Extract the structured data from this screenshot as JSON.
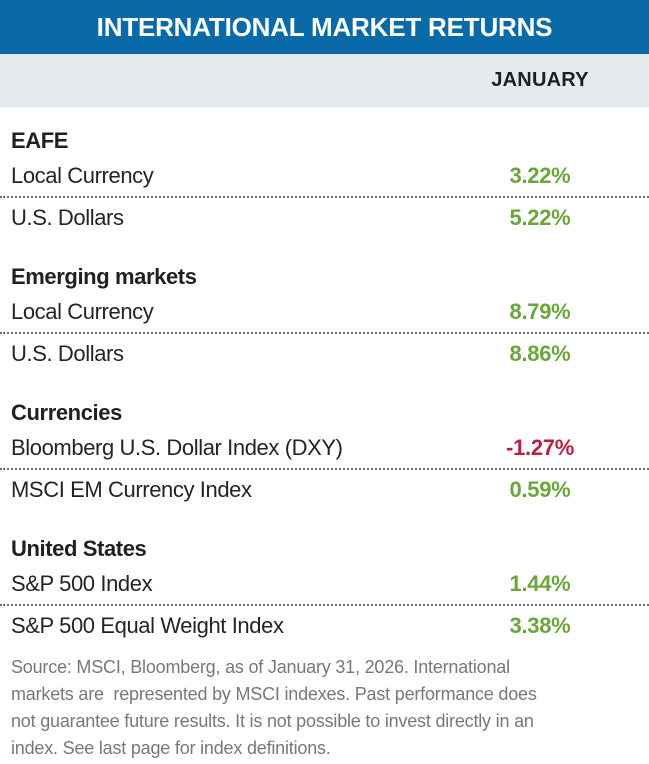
{
  "title": "INTERNATIONAL MARKET RETURNS",
  "column_header": "JANUARY",
  "colors": {
    "header_bg": "#0A6AA7",
    "column_header_bg": "#E5EAEC",
    "positive_value": "#6AA63C",
    "negative_value": "#B81F41",
    "heading_text": "#231F20",
    "footnote_text": "#77787B"
  },
  "sections": [
    {
      "name": "EAFE",
      "rows": [
        {
          "label": "Local Currency",
          "value": "3.22%",
          "sentiment": "positive"
        },
        {
          "label": "U.S. Dollars",
          "value": "5.22%",
          "sentiment": "positive"
        }
      ]
    },
    {
      "name": "Emerging markets",
      "rows": [
        {
          "label": "Local Currency",
          "value": "8.79%",
          "sentiment": "positive"
        },
        {
          "label": "U.S. Dollars",
          "value": "8.86%",
          "sentiment": "positive"
        }
      ]
    },
    {
      "name": "Currencies",
      "rows": [
        {
          "label": "Bloomberg U.S. Dollar Index (DXY)",
          "value": "-1.27%",
          "sentiment": "negative"
        },
        {
          "label": "MSCI EM Currency Index",
          "value": "0.59%",
          "sentiment": "positive"
        }
      ]
    },
    {
      "name": "United States",
      "rows": [
        {
          "label": "S&P 500 Index",
          "value": "1.44%",
          "sentiment": "positive"
        },
        {
          "label": "S&P 500 Equal Weight Index",
          "value": "3.38%",
          "sentiment": "positive"
        }
      ]
    }
  ],
  "footnote_lines": [
    "Source: MSCI, Bloomberg, as of January 31, 2026. International",
    "markets are  represented by MSCI indexes. Past performance does",
    "not guarantee future results. It is not possible to invest directly in an",
    "index. See last page for index definitions."
  ],
  "chart_data": {
    "type": "table",
    "title": "INTERNATIONAL MARKET RETURNS",
    "columns": [
      "JANUARY"
    ],
    "groups": [
      {
        "group": "EAFE",
        "rows": [
          [
            "Local Currency",
            3.22
          ],
          [
            "U.S. Dollars",
            5.22
          ]
        ]
      },
      {
        "group": "Emerging markets",
        "rows": [
          [
            "Local Currency",
            8.79
          ],
          [
            "U.S. Dollars",
            8.86
          ]
        ]
      },
      {
        "group": "Currencies",
        "rows": [
          [
            "Bloomberg U.S. Dollar Index (DXY)",
            -1.27
          ],
          [
            "MSCI EM Currency Index",
            0.59
          ]
        ]
      },
      {
        "group": "United States",
        "rows": [
          [
            "S&P 500 Index",
            1.44
          ],
          [
            "S&P 500 Equal Weight Index",
            3.38
          ]
        ]
      }
    ],
    "unit": "%",
    "note": "Source: MSCI, Bloomberg, as of January 31, 2026. International markets are represented by MSCI indexes. Past performance does not guarantee future results. It is not possible to invest directly in an index. See last page for index definitions."
  }
}
